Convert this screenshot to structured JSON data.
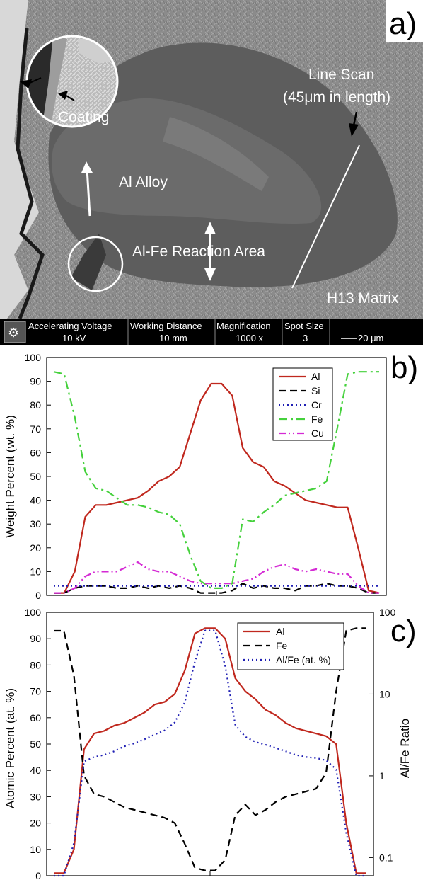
{
  "sem": {
    "panel_label": "a)",
    "labels": {
      "coating": "Coating",
      "al_alloy": "Al Alloy",
      "reaction_area": "Al-Fe Reaction Area",
      "line_scan_1": "Line Scan",
      "line_scan_2": "(45μm in length)",
      "matrix": "H13 Matrix"
    },
    "info_bar": {
      "headers": [
        "Accelerating Voltage",
        "Working Distance",
        "Magnification",
        "Spot Size"
      ],
      "values": [
        "10 kV",
        "10 mm",
        "1000 x",
        "3"
      ],
      "scale_label": "20 μm"
    },
    "colors": {
      "background": "#8f8f8f",
      "reaction": "#5e5e5e",
      "alloy": "#6c6c6c",
      "bar": "#000000"
    }
  },
  "chart_data": [
    {
      "panel_label": "b)",
      "type": "line",
      "ylabel": "Weight Percent (wt. %)",
      "xlabel": "",
      "ylim": [
        0,
        100
      ],
      "yticks": [
        0,
        10,
        20,
        30,
        40,
        50,
        60,
        70,
        80,
        90,
        100
      ],
      "legend_position": "top-right",
      "series": [
        {
          "name": "Al",
          "color": "#c0281e",
          "dash": "solid",
          "values": [
            1,
            1,
            10,
            33,
            38,
            38,
            39,
            40,
            41,
            44,
            48,
            50,
            54,
            68,
            82,
            89,
            89,
            84,
            62,
            56,
            54,
            48,
            46,
            43,
            40,
            39,
            38,
            37,
            37,
            20,
            2,
            1
          ]
        },
        {
          "name": "Si",
          "color": "#000000",
          "dash": "dash",
          "values": [
            1,
            1,
            3,
            4,
            4,
            4,
            3,
            3,
            4,
            3,
            4,
            3,
            4,
            3,
            1,
            1,
            1,
            2,
            5,
            3,
            4,
            3,
            3,
            2,
            4,
            4,
            5,
            4,
            4,
            3,
            1,
            1
          ]
        },
        {
          "name": "Cr",
          "color": "#1f1fb4",
          "dash": "dot",
          "values": [
            4,
            4,
            4,
            4,
            4,
            4,
            4,
            4,
            4,
            4,
            4,
            4,
            4,
            4,
            4,
            4,
            4,
            4,
            4,
            4,
            4,
            4,
            4,
            4,
            4,
            4,
            4,
            4,
            4,
            4,
            4,
            4
          ]
        },
        {
          "name": "Fe",
          "color": "#45d13c",
          "dash": "dashdot",
          "values": [
            94,
            93,
            75,
            52,
            45,
            44,
            41,
            38,
            38,
            37,
            35,
            34,
            30,
            17,
            6,
            3,
            3,
            5,
            32,
            31,
            35,
            38,
            42,
            43,
            44,
            45,
            48,
            70,
            93,
            94,
            94,
            94
          ]
        },
        {
          "name": "Cu",
          "color": "#d42ad4",
          "dash": "dashdotdot",
          "values": [
            1,
            1,
            3,
            8,
            10,
            10,
            10,
            12,
            14,
            11,
            10,
            10,
            8,
            6,
            5,
            5,
            5,
            5,
            6,
            7,
            10,
            12,
            13,
            11,
            10,
            11,
            10,
            9,
            9,
            4,
            1,
            1
          ]
        }
      ]
    },
    {
      "panel_label": "c)",
      "type": "line",
      "ylabel": "Atomic Percent (at. %)",
      "y2label": "Al/Fe Ratio",
      "xlabel": "",
      "ylim": [
        0,
        100
      ],
      "yticks": [
        0,
        10,
        20,
        30,
        40,
        50,
        60,
        70,
        80,
        90,
        100
      ],
      "y2lim": [
        0.06,
        100
      ],
      "y2scale": "log",
      "y2ticks": [
        "0.1",
        "1",
        "10",
        "100"
      ],
      "legend_position": "top-right",
      "series": [
        {
          "name": "Al",
          "color": "#c0281e",
          "dash": "solid",
          "axis": "left",
          "values": [
            1,
            1,
            10,
            48,
            54,
            55,
            57,
            58,
            60,
            62,
            65,
            66,
            69,
            78,
            92,
            94,
            94,
            90,
            75,
            70,
            67,
            63,
            61,
            58,
            56,
            55,
            54,
            53,
            50,
            20,
            1,
            1
          ]
        },
        {
          "name": "Fe",
          "color": "#000000",
          "dash": "dash",
          "axis": "left",
          "values": [
            93,
            93,
            76,
            38,
            31,
            30,
            28,
            26,
            25,
            24,
            23,
            22,
            20,
            12,
            3,
            2,
            2,
            6,
            23,
            27,
            23,
            25,
            28,
            30,
            31,
            32,
            33,
            39,
            70,
            93,
            94,
            94
          ]
        },
        {
          "name": "Al/Fe (at. %)",
          "color": "#1f1fb4",
          "dash": "dot",
          "axis": "right",
          "values": [
            0.06,
            0.06,
            0.15,
            1.5,
            1.7,
            1.8,
            2.0,
            2.3,
            2.5,
            2.8,
            3.2,
            3.6,
            4.5,
            8,
            25,
            60,
            60,
            22,
            4.2,
            3.0,
            2.6,
            2.4,
            2.2,
            2.0,
            1.8,
            1.7,
            1.65,
            1.55,
            1.2,
            0.2,
            0.06,
            0.06
          ]
        }
      ]
    }
  ]
}
